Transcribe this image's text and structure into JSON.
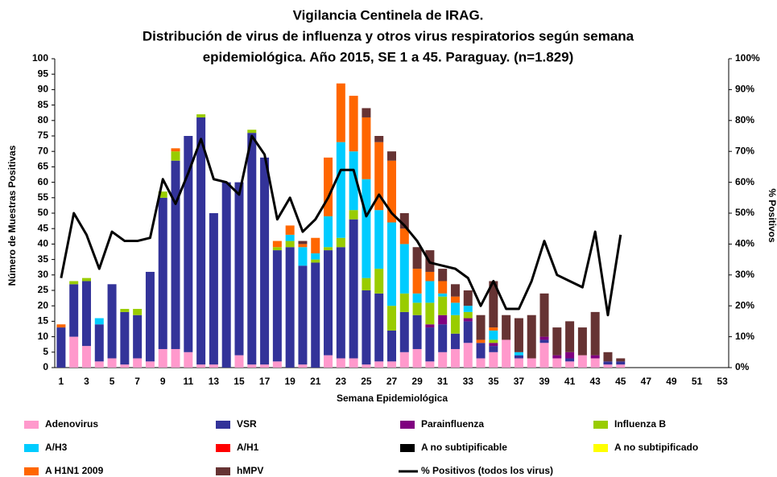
{
  "chart_data": {
    "type": "bar",
    "stacked": true,
    "title": [
      "Vigilancia Centinela de IRAG.",
      "Distribución de virus de influenza y otros virus respiratorios según semana",
      "epidemiológica. Año 2015, SE 1 a 45. Paraguay. (n=1.829)"
    ],
    "x_label": "Semana Epidemiológica",
    "y_label": "Número de Muestras Positivas",
    "y2_label": "% Positivos",
    "categories": [
      1,
      null,
      3,
      null,
      5,
      null,
      7,
      null,
      9,
      null,
      11,
      null,
      13,
      null,
      15,
      null,
      17,
      null,
      19,
      null,
      21,
      null,
      23,
      null,
      25,
      null,
      27,
      null,
      29,
      null,
      31,
      null,
      33,
      null,
      35,
      null,
      37,
      null,
      39,
      null,
      41,
      null,
      43,
      null,
      45,
      null,
      47,
      null,
      49,
      null,
      51,
      null,
      53
    ],
    "ylim": [
      0,
      100
    ],
    "yticks": [
      0,
      5,
      10,
      15,
      20,
      25,
      30,
      35,
      40,
      45,
      50,
      55,
      60,
      65,
      70,
      75,
      80,
      85,
      90,
      95,
      100
    ],
    "y2lim": [
      0,
      100
    ],
    "y2ticks": [
      {
        "value": 0,
        "label": "0%"
      },
      {
        "value": 10,
        "label": "10%"
      },
      {
        "value": 20,
        "label": "20%"
      },
      {
        "value": 30,
        "label": "30%"
      },
      {
        "value": 40,
        "label": "40%"
      },
      {
        "value": 50,
        "label": "50%"
      },
      {
        "value": 60,
        "label": "60%"
      },
      {
        "value": 70,
        "label": "70%"
      },
      {
        "value": 80,
        "label": "80%"
      },
      {
        "value": 90,
        "label": "90%"
      },
      {
        "value": 100,
        "label": "100%"
      }
    ],
    "series": [
      {
        "name": "Adenovirus",
        "color": "#ff99cc",
        "values": [
          0,
          10,
          7,
          2,
          3,
          1,
          3,
          2,
          6,
          6,
          5,
          1,
          1,
          0,
          4,
          1,
          1,
          2,
          0,
          1,
          0,
          4,
          3,
          3,
          1,
          2,
          2,
          5,
          6,
          2,
          5,
          6,
          8,
          3,
          5,
          9,
          3,
          3,
          8,
          3,
          2,
          4,
          3,
          1,
          1,
          null,
          null,
          null,
          null,
          null,
          null,
          null,
          null
        ]
      },
      {
        "name": "VSR",
        "color": "#333399",
        "values": [
          13,
          17,
          21,
          12,
          24,
          17,
          14,
          29,
          49,
          61,
          70,
          80,
          49,
          60,
          56,
          75,
          67,
          36,
          39,
          32,
          34,
          34,
          36,
          45,
          24,
          22,
          10,
          13,
          11,
          11,
          9,
          5,
          7,
          5,
          2,
          0,
          1,
          0,
          1,
          0,
          1,
          0,
          0,
          1,
          1,
          null,
          null,
          null,
          null,
          null,
          null,
          null,
          null
        ]
      },
      {
        "name": "Parainfluenza",
        "color": "#800080",
        "values": [
          0,
          0,
          0,
          0,
          0,
          0,
          0,
          0,
          0,
          0,
          0,
          0,
          0,
          0,
          0,
          0,
          0,
          0,
          0,
          0,
          0,
          0,
          0,
          0,
          0,
          0,
          0,
          0,
          0,
          1,
          3,
          0,
          1,
          0,
          1,
          0,
          0,
          0,
          1,
          1,
          2,
          0,
          1,
          0,
          0,
          null,
          null,
          null,
          null,
          null,
          null,
          null,
          null
        ]
      },
      {
        "name": "Influenza  B",
        "color": "#99cc00",
        "values": [
          0,
          1,
          1,
          0,
          0,
          1,
          2,
          0,
          2,
          3,
          0,
          1,
          0,
          0,
          0,
          1,
          0,
          1,
          2,
          0,
          1,
          1,
          3,
          3,
          4,
          8,
          8,
          6,
          4,
          7,
          6,
          6,
          2,
          0,
          1,
          0,
          0,
          0,
          0,
          0,
          0,
          0,
          0,
          0,
          0,
          null,
          null,
          null,
          null,
          null,
          null,
          null,
          null
        ]
      },
      {
        "name": "A/H3",
        "color": "#00ccff",
        "values": [
          0,
          0,
          0,
          2,
          0,
          0,
          0,
          0,
          0,
          0,
          0,
          0,
          0,
          0,
          0,
          0,
          0,
          0,
          2,
          6,
          2,
          10,
          31,
          19,
          32,
          19,
          27,
          16,
          3,
          7,
          1,
          4,
          2,
          0,
          3,
          0,
          1,
          0,
          0,
          0,
          0,
          0,
          0,
          0,
          0,
          null,
          null,
          null,
          null,
          null,
          null,
          null,
          null
        ]
      },
      {
        "name": "A/H1",
        "color": "#ff0000",
        "values": [
          0,
          0,
          0,
          0,
          0,
          0,
          0,
          0,
          0,
          0,
          0,
          0,
          0,
          0,
          0,
          0,
          0,
          0,
          0,
          0,
          0,
          0,
          0,
          0,
          0,
          0,
          0,
          0,
          0,
          0,
          0,
          0,
          0,
          0,
          0,
          0,
          0,
          0,
          0,
          0,
          0,
          0,
          0,
          0,
          0,
          null,
          null,
          null,
          null,
          null,
          null,
          null,
          null
        ]
      },
      {
        "name": "A no subtipificable",
        "color": "#000000",
        "values": [
          0,
          0,
          0,
          0,
          0,
          0,
          0,
          0,
          0,
          0,
          0,
          0,
          0,
          0,
          0,
          0,
          0,
          0,
          0,
          0,
          0,
          0,
          0,
          0,
          0,
          0,
          0,
          0,
          0,
          0,
          0,
          0,
          0,
          0,
          0,
          0,
          0,
          0,
          0,
          0,
          0,
          0,
          0,
          0,
          0,
          null,
          null,
          null,
          null,
          null,
          null,
          null,
          null
        ]
      },
      {
        "name": "A no subtipificado",
        "color": "#ffff00",
        "values": [
          0,
          0,
          0,
          0,
          0,
          0,
          0,
          0,
          0,
          0,
          0,
          0,
          0,
          0,
          0,
          0,
          0,
          0,
          0,
          0,
          0,
          0,
          0,
          0,
          0,
          0,
          0,
          0,
          0,
          0,
          0,
          0,
          0,
          0,
          0,
          0,
          0,
          0,
          0,
          0,
          0,
          0,
          0,
          0,
          0,
          null,
          null,
          null,
          null,
          null,
          null,
          null,
          null
        ]
      },
      {
        "name": "A H1N1 2009",
        "color": "#ff6600",
        "values": [
          1,
          0,
          0,
          0,
          0,
          0,
          0,
          0,
          0,
          1,
          0,
          0,
          0,
          0,
          0,
          0,
          0,
          2,
          3,
          1,
          5,
          19,
          19,
          18,
          20,
          22,
          20,
          5,
          8,
          3,
          4,
          2,
          0,
          1,
          1,
          0,
          0,
          0,
          0,
          0,
          0,
          0,
          0,
          0,
          0,
          null,
          null,
          null,
          null,
          null,
          null,
          null,
          null
        ]
      },
      {
        "name": "hMPV",
        "color": "#663333",
        "values": [
          0,
          0,
          0,
          0,
          0,
          0,
          0,
          0,
          0,
          0,
          0,
          0,
          0,
          0,
          0,
          0,
          0,
          0,
          0,
          1,
          0,
          0,
          0,
          0,
          3,
          2,
          3,
          5,
          7,
          7,
          4,
          4,
          5,
          8,
          15,
          8,
          11,
          14,
          14,
          9,
          10,
          9,
          14,
          3,
          1,
          null,
          null,
          null,
          null,
          null,
          null,
          null,
          null
        ]
      },
      {
        "name": "% Positivos (todos los virus)",
        "type": "line",
        "axis": "y2",
        "color": "#000000",
        "values": [
          29,
          50,
          43,
          32,
          44,
          41,
          41,
          42,
          61,
          53,
          63,
          74,
          61,
          60,
          56,
          75,
          69,
          48,
          55,
          44,
          48,
          55,
          64,
          64,
          49,
          56,
          50,
          46,
          41,
          34,
          33,
          32,
          29,
          20,
          28,
          19,
          19,
          28,
          41,
          30,
          28,
          26,
          44,
          17,
          43,
          null,
          null,
          null,
          null,
          null,
          null,
          null,
          null
        ]
      }
    ]
  }
}
